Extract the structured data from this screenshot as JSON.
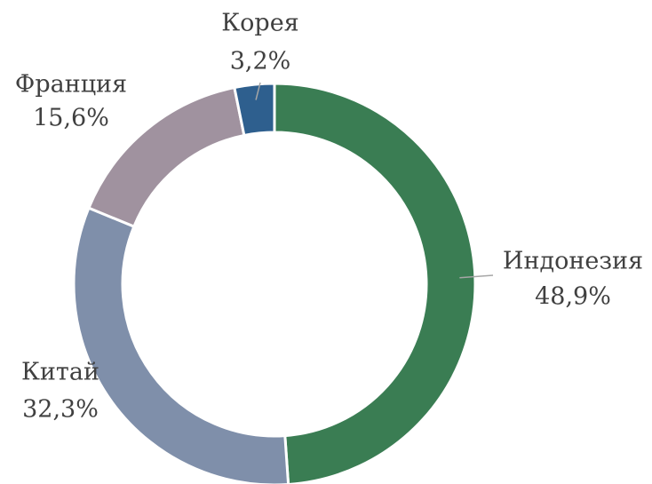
{
  "chart_data": {
    "type": "pie",
    "categories": [
      "Индонезия",
      "Китай",
      "Франция",
      "Корея"
    ],
    "values": [
      48.9,
      32.3,
      15.6,
      3.2
    ],
    "value_labels": [
      "48,9%",
      "32,3%",
      "15,6%",
      "3,2%"
    ],
    "colors": [
      "#3a7d53",
      "#7f8faa",
      "#a0929f",
      "#2e5f8e"
    ],
    "donut": true
  }
}
